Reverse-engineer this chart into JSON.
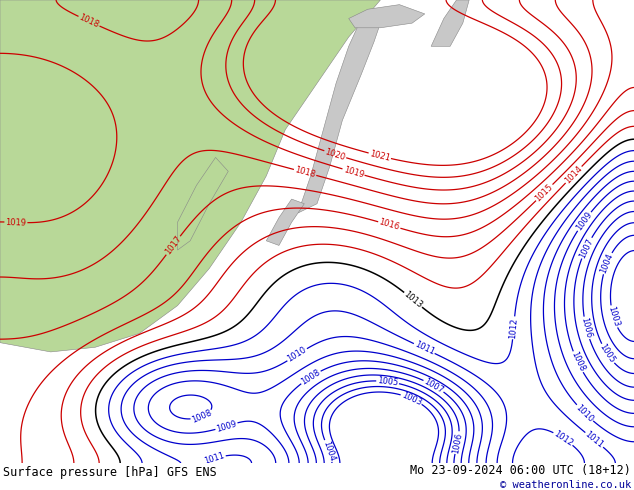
{
  "title_left": "Surface pressure [hPa] GFS ENS",
  "title_right": "Mo 23-09-2024 06:00 UTC (18+12)",
  "copyright": "© weatheronline.co.uk",
  "ocean_color": "#c8c8c8",
  "land_green": "#b8d898",
  "land_gray": "#c8c8c8",
  "red_color": "#cc0000",
  "blue_color": "#0000cc",
  "black_color": "#000000",
  "gray_color": "#888888",
  "bar_color": "#d0d0d0",
  "font_size_label": 6.5,
  "font_size_title": 8.5
}
